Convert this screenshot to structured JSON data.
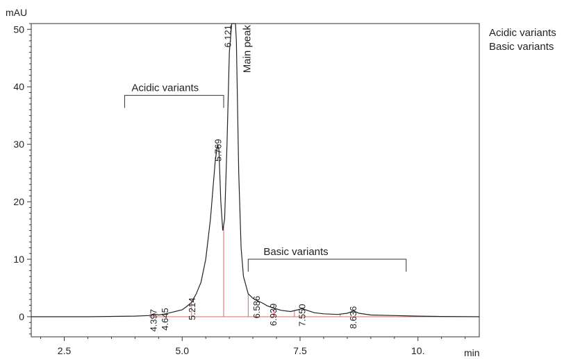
{
  "legend": {
    "items": [
      "Acidic variants",
      "Basic variants"
    ]
  },
  "chart_data": {
    "type": "line",
    "title": "",
    "xlabel": "min",
    "ylabel": "mAU",
    "xlim": [
      1.8,
      11.3
    ],
    "ylim": [
      -3.5,
      51
    ],
    "x_ticks": [
      2.5,
      5.0,
      7.5,
      10.0
    ],
    "x_tick_labels": [
      "2.5",
      "5.0",
      "7.5",
      "10."
    ],
    "y_ticks": [
      0,
      10,
      20,
      30,
      40,
      50
    ],
    "y_tick_labels": [
      "0",
      "10",
      "20",
      "30",
      "40",
      "50"
    ],
    "series": [
      {
        "x": [
          1.8,
          3.0,
          4.0,
          4.3,
          4.4,
          4.5,
          4.65,
          4.8,
          5.0,
          5.1,
          5.2,
          5.3,
          5.4,
          5.5,
          5.6,
          5.65,
          5.7,
          5.75,
          5.78,
          5.82,
          5.86,
          5.9,
          5.95,
          6.0,
          6.05,
          6.08,
          6.1,
          6.121,
          6.13,
          6.15,
          6.2,
          6.25,
          6.3,
          6.4,
          6.5,
          6.586,
          6.7,
          6.8,
          6.939,
          7.1,
          7.3,
          7.45,
          7.55,
          7.65,
          7.8,
          8.0,
          8.3,
          8.5,
          8.636,
          8.75,
          9.0,
          9.5,
          10.0,
          10.5,
          11.3
        ],
        "y": [
          0,
          0,
          0.1,
          0.2,
          0.5,
          0.3,
          0.5,
          0.8,
          1.2,
          1.8,
          2.5,
          4.0,
          6.0,
          10.0,
          17.0,
          22.0,
          27.0,
          30.0,
          29.0,
          20.0,
          15.0,
          17.0,
          30.0,
          46.0,
          51.0,
          51.0,
          51.0,
          51.0,
          51.0,
          48.0,
          25.0,
          12.0,
          7.0,
          4.0,
          3.2,
          2.8,
          2.4,
          1.9,
          1.5,
          1.1,
          0.9,
          1.2,
          1.4,
          1.1,
          0.7,
          0.5,
          0.4,
          0.6,
          1.0,
          0.6,
          0.3,
          0.2,
          0.1,
          0.05,
          0
        ]
      }
    ],
    "baseline_segments": [
      [
        4.3,
        6.4
      ],
      [
        6.4,
        11.0
      ]
    ],
    "peak_markers": [
      4.4,
      5.2,
      5.88,
      6.4,
      6.95,
      7.38,
      8.35
    ],
    "peak_labels": [
      {
        "x": 4.397,
        "y": 0.6,
        "label": "4.397"
      },
      {
        "x": 4.645,
        "y": 0.8,
        "label": "4.645"
      },
      {
        "x": 5.214,
        "y": 2.6,
        "label": "5.214"
      },
      {
        "x": 5.769,
        "y": 30.2,
        "label": "5.769"
      },
      {
        "x": 6.121,
        "y": 51.0,
        "label": "6.121"
      },
      {
        "x": 6.586,
        "y": 2.9,
        "label": "6.586"
      },
      {
        "x": 6.939,
        "y": 1.6,
        "label": "6.939"
      },
      {
        "x": 7.55,
        "y": 1.5,
        "label": "7.550"
      },
      {
        "x": 8.636,
        "y": 1.1,
        "label": "8.636"
      }
    ],
    "annotations": [
      {
        "text": "Main peak",
        "x": 6.3,
        "y": 51.0,
        "rotated": true
      },
      {
        "text": "Acidic variants",
        "bracket_x": [
          3.78,
          5.88
        ],
        "bracket_y": 38.5
      },
      {
        "text": "Basic variants",
        "bracket_x": [
          6.4,
          9.75
        ],
        "bracket_y": 10.0
      }
    ],
    "grid": false,
    "legend_position": "top-right"
  }
}
